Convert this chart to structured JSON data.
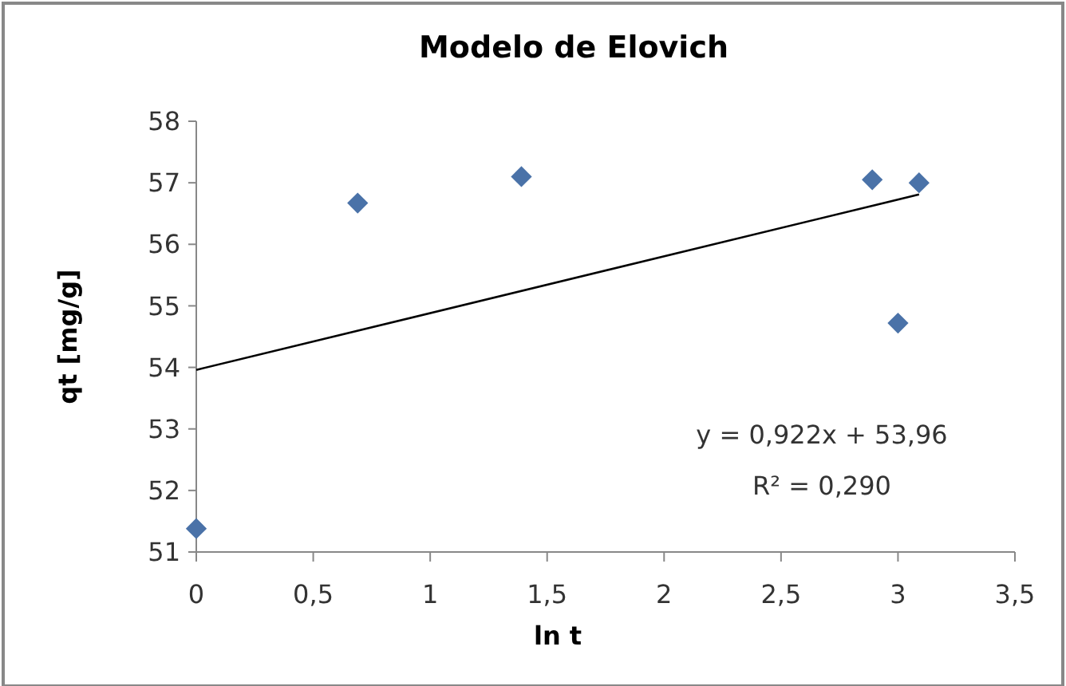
{
  "chart_data": {
    "type": "scatter",
    "title": "Modelo de Elovich",
    "xlabel": "ln t",
    "ylabel": "qt  [mg/g]",
    "series": [
      {
        "color": "#4a72a8",
        "marker": "diamond",
        "x": [
          0,
          0.69,
          1.39,
          2.89,
          3.0,
          3.09
        ],
        "values": [
          51.38,
          56.67,
          57.1,
          57.05,
          54.72,
          57.0
        ]
      },
      {
        "type": "line",
        "color": "#000000",
        "x": [
          0,
          3.09
        ],
        "values": [
          53.96,
          56.81
        ]
      }
    ],
    "grid": false,
    "xlim": [
      0,
      3.5
    ],
    "xticks": [
      0,
      {
        "value": 0.5,
        "label": "0,5"
      },
      1,
      {
        "value": 1.5,
        "label": "1,5"
      },
      2,
      {
        "value": 2.5,
        "label": "2,5"
      },
      3,
      {
        "value": 3.5,
        "label": "3,5"
      }
    ],
    "ylim": [
      51,
      58
    ],
    "yticks": [
      51,
      52,
      53,
      54,
      55,
      56,
      57,
      58
    ],
    "annotations": [
      "y = 0,922x + 53,96",
      "R² = 0,290"
    ]
  }
}
